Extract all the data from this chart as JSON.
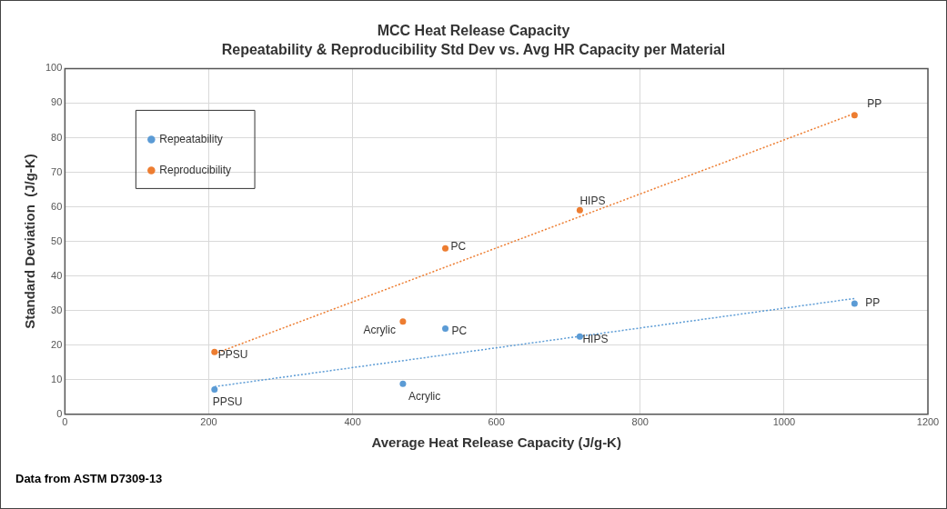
{
  "chart_data": {
    "type": "scatter",
    "title": "MCC Heat Release Capacity",
    "subtitle": "Repeatability & Reproducibility Std Dev vs. Avg HR Capacity per Material",
    "xlabel": "Average Heat Release Capacity (J/g-K)",
    "ylabel": "Standard Deviation  (J/g-K)",
    "series": [
      {
        "name": "Repeatability",
        "color": "#5b9bd5",
        "x": [
          208,
          470,
          529,
          716,
          1098
        ],
        "values": [
          7.2,
          8.8,
          24.8,
          22.5,
          32
        ]
      },
      {
        "name": "Reproducibility",
        "color": "#ed7d31",
        "x": [
          208,
          470,
          529,
          716,
          1098
        ],
        "values": [
          18,
          26.8,
          48,
          59,
          86.5
        ]
      },
      {
        "type": "line",
        "color": "#5b9bd5",
        "line_style": "dotted",
        "marker": "none",
        "x": [
          208,
          1098
        ],
        "values": [
          8,
          33.5
        ]
      },
      {
        "type": "line",
        "color": "#ed7d31",
        "line_style": "dotted",
        "marker": "none",
        "x": [
          208,
          1098
        ],
        "values": [
          17.5,
          87
        ]
      }
    ],
    "xlim": [
      0,
      1200
    ],
    "xticks": [
      0,
      200,
      400,
      600,
      800,
      1000,
      1200
    ],
    "ylim": [
      0,
      100
    ],
    "yticks": [
      0,
      10,
      20,
      30,
      40,
      50,
      60,
      70,
      80,
      90,
      100
    ],
    "grid": true,
    "legend": "top left",
    "marker": "circle",
    "annotations": [
      {
        "text": "PPSU",
        "x": 208,
        "y": 7.2
      },
      {
        "text": "Acrylic",
        "x": 470,
        "y": 8.8
      },
      {
        "text": "PC",
        "x": 529,
        "y": 24.8
      },
      {
        "text": "HIPS",
        "x": 716,
        "y": 22.5
      },
      {
        "text": "PP",
        "x": 1098,
        "y": 32
      },
      {
        "text": "PPSU",
        "x": 208,
        "y": 18
      },
      {
        "text": "Acrylic",
        "x": 470,
        "y": 26.8
      },
      {
        "text": "PC",
        "x": 529,
        "y": 48
      },
      {
        "text": "HIPS",
        "x": 716,
        "y": 59
      },
      {
        "text": "PP",
        "x": 1098,
        "y": 86.5
      },
      "Data from ASTM D7309-13"
    ]
  }
}
